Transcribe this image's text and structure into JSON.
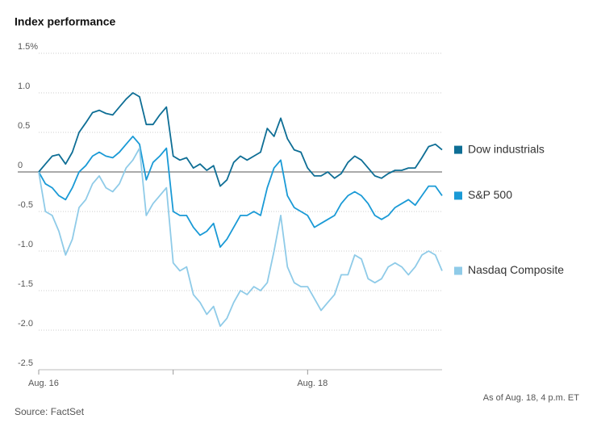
{
  "chart_data": {
    "type": "line",
    "title": "Index performance",
    "note": "As of Aug. 18, 4 p.m. ET",
    "source": "Source: FactSet",
    "x": [
      0,
      1,
      2,
      3,
      4,
      5,
      6,
      7,
      8,
      9,
      10,
      11,
      12,
      13,
      14,
      15,
      16,
      17,
      18,
      19,
      20,
      21,
      22,
      23,
      24,
      25,
      26,
      27,
      28,
      29,
      30,
      31,
      32,
      33,
      34,
      35,
      36,
      37,
      38,
      39,
      40,
      41,
      42,
      43,
      44,
      45,
      46,
      47,
      48,
      49,
      50,
      51,
      52,
      53,
      54,
      55,
      56,
      57,
      58,
      59,
      60
    ],
    "xlim": [
      0,
      60
    ],
    "xticks": [
      {
        "value": 0,
        "label": "Aug. 16"
      },
      {
        "value": 40,
        "label": "Aug. 18"
      }
    ],
    "xminorticks": [
      20
    ],
    "ylim": [
      -2.5,
      1.5
    ],
    "yticks": [
      {
        "value": 1.5,
        "label": "1.5%"
      },
      {
        "value": 1.0,
        "label": "1.0"
      },
      0.5,
      0,
      -0.5,
      {
        "value": -1.0,
        "label": "-1.0"
      },
      -1.5,
      {
        "value": -2.0,
        "label": "-2.0"
      },
      -2.5
    ],
    "grid": true,
    "series": [
      {
        "name": "Dow industrials",
        "color": "#0e6e95",
        "values": [
          0,
          0.1,
          0.2,
          0.22,
          0.1,
          0.25,
          0.5,
          0.62,
          0.75,
          0.78,
          0.74,
          0.72,
          0.82,
          0.92,
          1.0,
          0.95,
          0.6,
          0.6,
          0.72,
          0.82,
          0.2,
          0.15,
          0.18,
          0.05,
          0.1,
          0.02,
          0.08,
          -0.18,
          -0.1,
          0.12,
          0.2,
          0.15,
          0.2,
          0.25,
          0.55,
          0.45,
          0.68,
          0.42,
          0.28,
          0.25,
          0.05,
          -0.05,
          -0.05,
          0.0,
          -0.08,
          -0.02,
          0.12,
          0.2,
          0.15,
          0.05,
          -0.05,
          -0.08,
          -0.02,
          0.02,
          0.02,
          0.05,
          0.05,
          0.18,
          0.32,
          0.35,
          0.28
        ]
      },
      {
        "name": "S&P 500",
        "color": "#1a9ad6",
        "values": [
          0,
          -0.15,
          -0.2,
          -0.3,
          -0.35,
          -0.2,
          0.0,
          0.08,
          0.2,
          0.25,
          0.2,
          0.18,
          0.25,
          0.35,
          0.45,
          0.35,
          -0.1,
          0.12,
          0.2,
          0.3,
          -0.5,
          -0.55,
          -0.55,
          -0.7,
          -0.8,
          -0.75,
          -0.65,
          -0.95,
          -0.85,
          -0.7,
          -0.55,
          -0.55,
          -0.5,
          -0.55,
          -0.2,
          0.05,
          0.15,
          -0.3,
          -0.45,
          -0.5,
          -0.55,
          -0.7,
          -0.65,
          -0.6,
          -0.55,
          -0.4,
          -0.3,
          -0.25,
          -0.3,
          -0.4,
          -0.55,
          -0.6,
          -0.55,
          -0.45,
          -0.4,
          -0.35,
          -0.42,
          -0.3,
          -0.18,
          -0.18,
          -0.3
        ]
      },
      {
        "name": "Nasdaq Composite",
        "color": "#8fcbe8",
        "values": [
          0,
          -0.5,
          -0.55,
          -0.75,
          -1.05,
          -0.85,
          -0.45,
          -0.35,
          -0.15,
          -0.05,
          -0.2,
          -0.25,
          -0.15,
          0.05,
          0.15,
          0.3,
          -0.55,
          -0.4,
          -0.3,
          -0.2,
          -1.15,
          -1.25,
          -1.2,
          -1.55,
          -1.65,
          -1.8,
          -1.7,
          -1.95,
          -1.85,
          -1.65,
          -1.5,
          -1.55,
          -1.45,
          -1.5,
          -1.4,
          -1.0,
          -0.55,
          -1.2,
          -1.4,
          -1.45,
          -1.45,
          -1.6,
          -1.75,
          -1.65,
          -1.55,
          -1.3,
          -1.3,
          -1.05,
          -1.1,
          -1.35,
          -1.4,
          -1.35,
          -1.2,
          -1.15,
          -1.2,
          -1.3,
          -1.2,
          -1.05,
          -1.0,
          -1.05,
          -1.25
        ]
      }
    ]
  }
}
